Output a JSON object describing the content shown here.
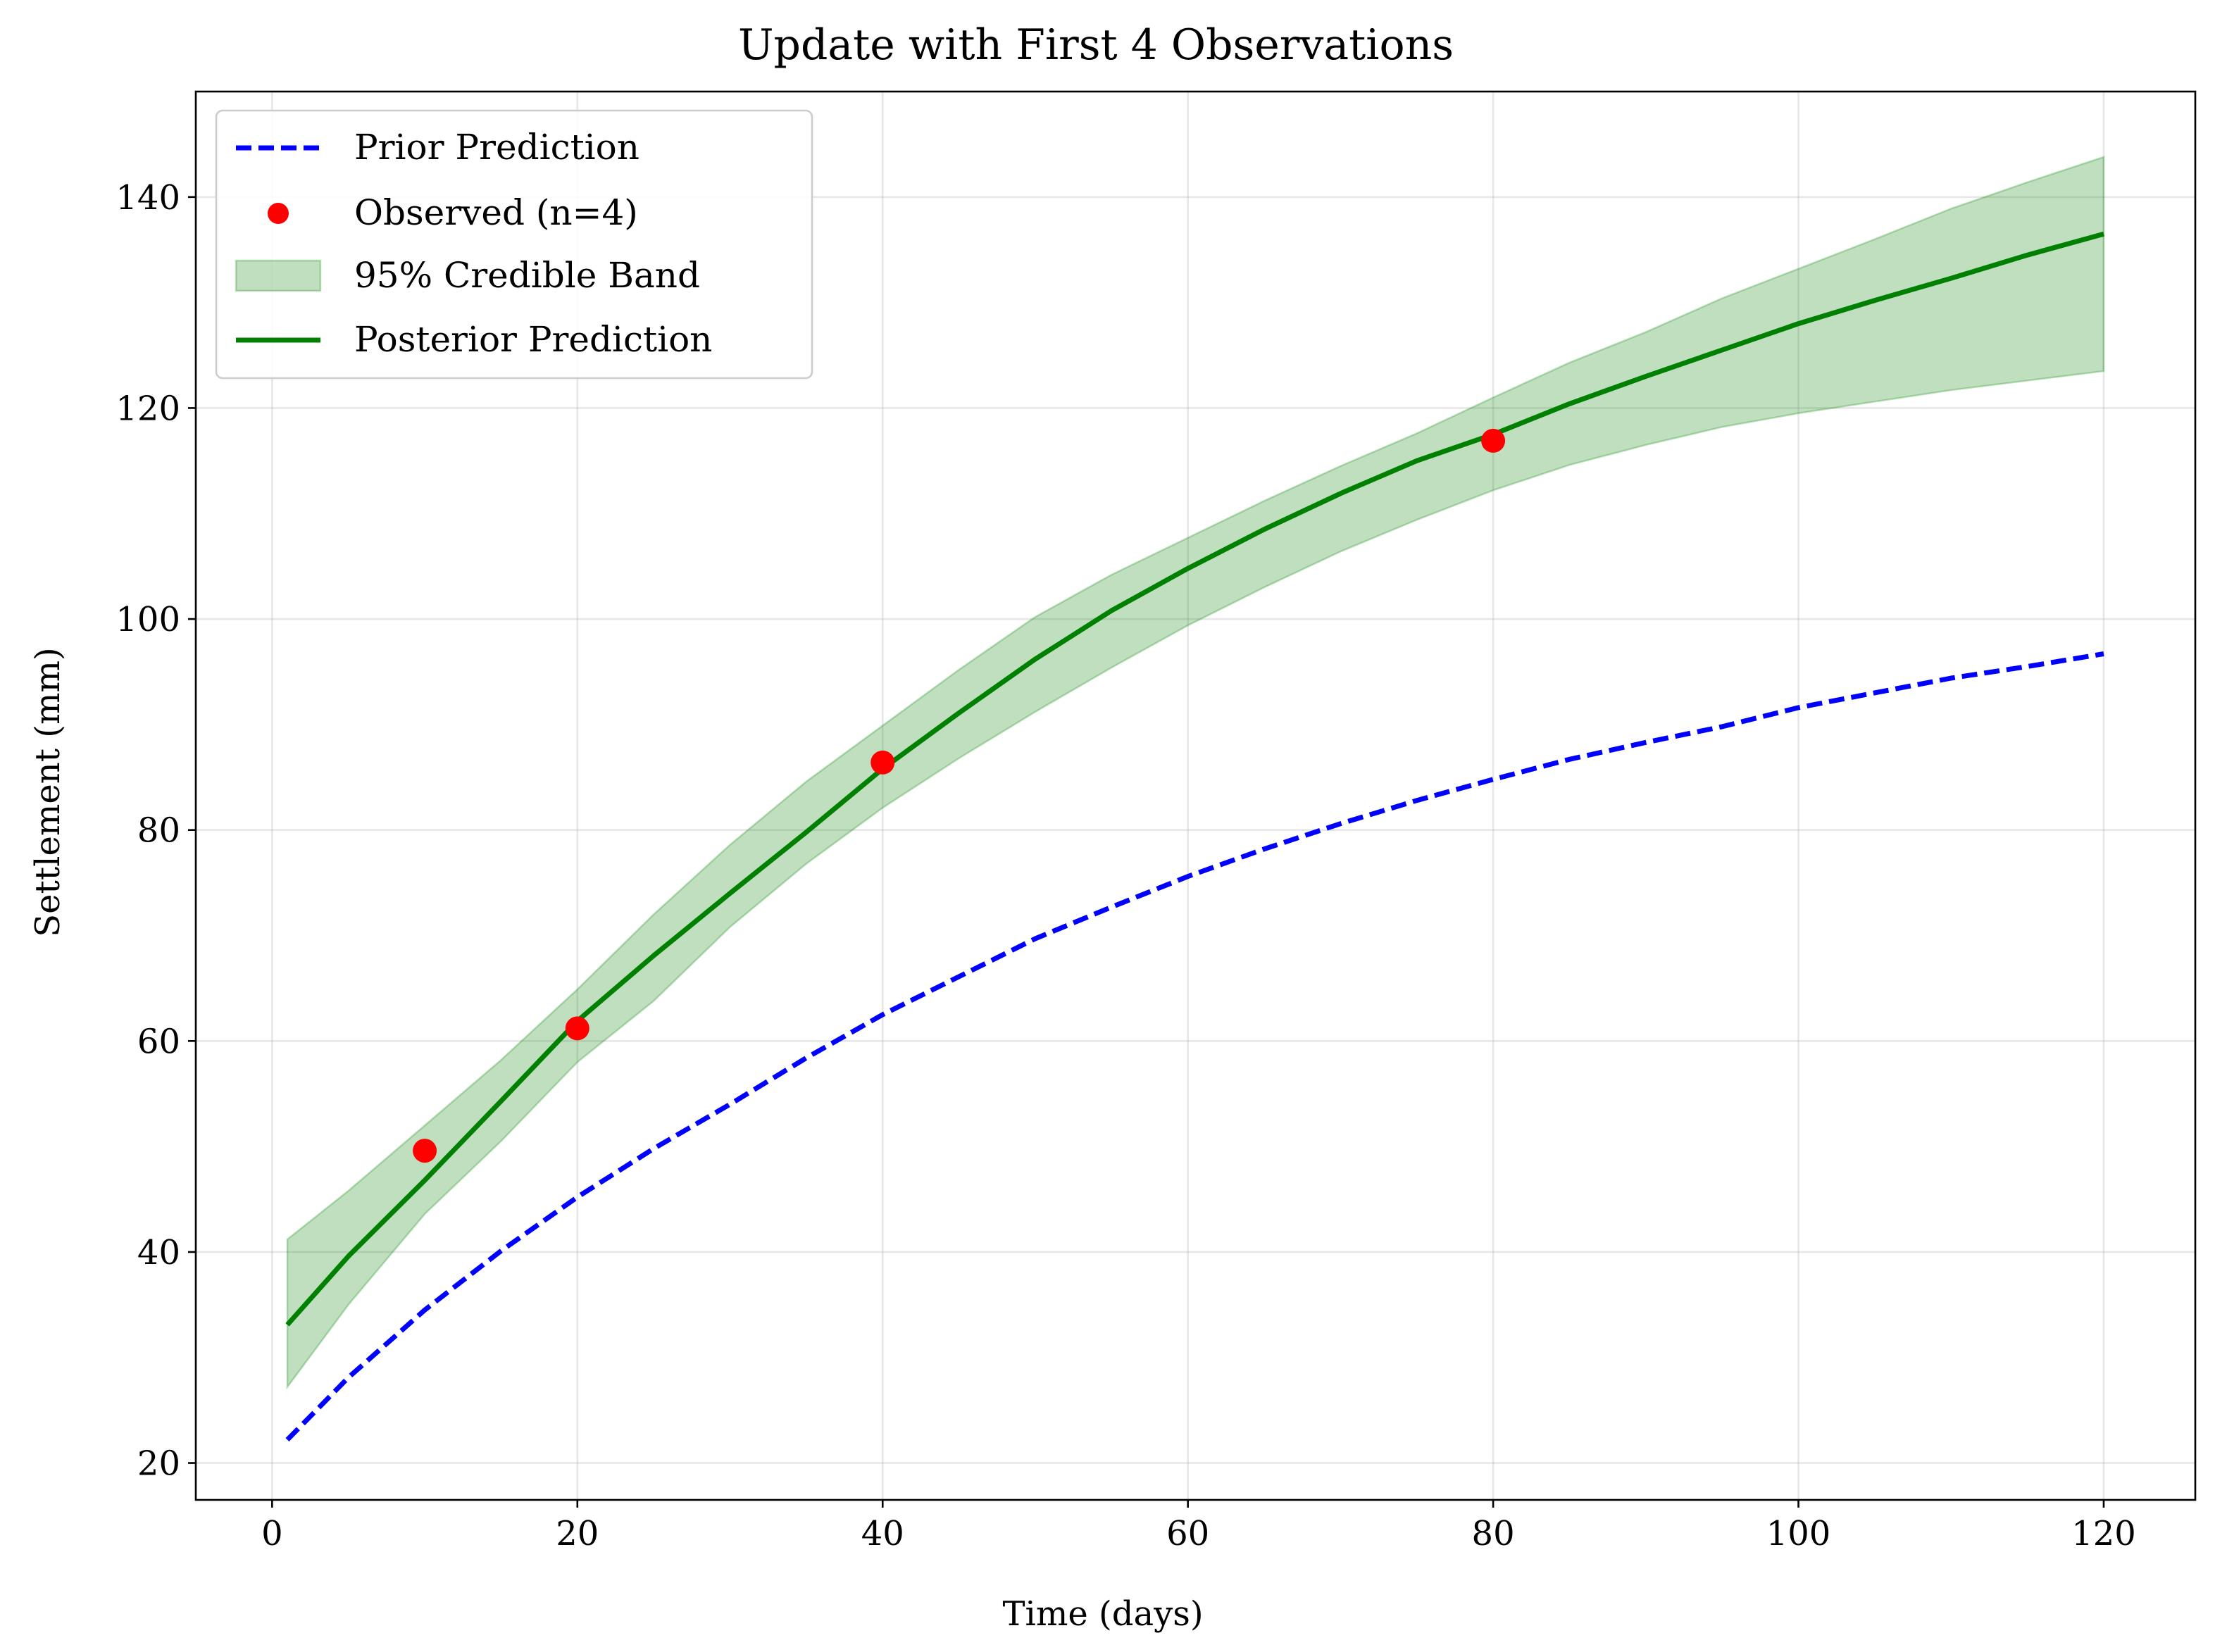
{
  "chart_data": {
    "type": "line",
    "title": "Update with First 4 Observations",
    "xlabel": "Time (days)",
    "ylabel": "Settlement (mm)",
    "xlim": [
      -5,
      126
    ],
    "ylim": [
      16.5,
      150
    ],
    "xticks": [
      0,
      20,
      40,
      60,
      80,
      100,
      120
    ],
    "yticks": [
      20,
      40,
      60,
      80,
      100,
      120,
      140
    ],
    "grid": true,
    "legend_position": "upper-left",
    "legend": [
      {
        "label": "Prior Prediction",
        "kind": "dashed-line",
        "color": "#0000ff"
      },
      {
        "label": "Observed (n=4)",
        "kind": "marker",
        "color": "#ff0000"
      },
      {
        "label": "95% Credible Band",
        "kind": "band",
        "color": "#008000"
      },
      {
        "label": "Posterior Prediction",
        "kind": "line",
        "color": "#008000"
      }
    ],
    "x": [
      1,
      5,
      10,
      15,
      20,
      25,
      30,
      35,
      40,
      45,
      50,
      55,
      60,
      65,
      70,
      75,
      80,
      85,
      90,
      95,
      100,
      105,
      110,
      115,
      120
    ],
    "series": [
      {
        "name": "Prior Prediction",
        "style": "dashed",
        "color": "#0000ff",
        "values": [
          22.2,
          28.1,
          34.5,
          40.1,
          45.2,
          49.8,
          54.0,
          58.4,
          62.5,
          66.1,
          69.7,
          72.7,
          75.6,
          78.2,
          80.6,
          82.8,
          84.8,
          86.7,
          88.3,
          89.8,
          91.6,
          93.0,
          94.4,
          95.5,
          96.7
        ]
      },
      {
        "name": "Posterior Prediction",
        "style": "solid",
        "color": "#008000",
        "values": [
          33.1,
          39.6,
          46.8,
          54.3,
          61.9,
          68.1,
          74.0,
          79.8,
          85.8,
          91.1,
          96.2,
          100.8,
          104.8,
          108.5,
          111.9,
          115.0,
          117.5,
          120.4,
          123.0,
          125.5,
          128.0,
          130.2,
          132.3,
          134.5,
          136.5
        ]
      }
    ],
    "band": {
      "name": "95% Credible Band",
      "color": "#008000",
      "lower": [
        27.2,
        35.0,
        43.6,
        50.5,
        58.0,
        63.8,
        70.8,
        76.8,
        82.1,
        86.8,
        91.2,
        95.4,
        99.4,
        103.0,
        106.4,
        109.4,
        112.2,
        114.6,
        116.5,
        118.2,
        119.5,
        120.6,
        121.7,
        122.6,
        123.5
      ],
      "upper": [
        41.2,
        45.8,
        52.0,
        58.2,
        64.9,
        72.0,
        78.6,
        84.6,
        89.9,
        95.2,
        100.2,
        104.2,
        107.7,
        111.2,
        114.5,
        117.6,
        121.0,
        124.3,
        127.2,
        130.4,
        133.2,
        136.0,
        138.9,
        141.4,
        143.8
      ]
    },
    "observed": {
      "name": "Observed (n=4)",
      "color": "#ff0000",
      "x": [
        10,
        20,
        40,
        80
      ],
      "y": [
        49.6,
        61.2,
        86.4,
        116.9
      ]
    }
  }
}
